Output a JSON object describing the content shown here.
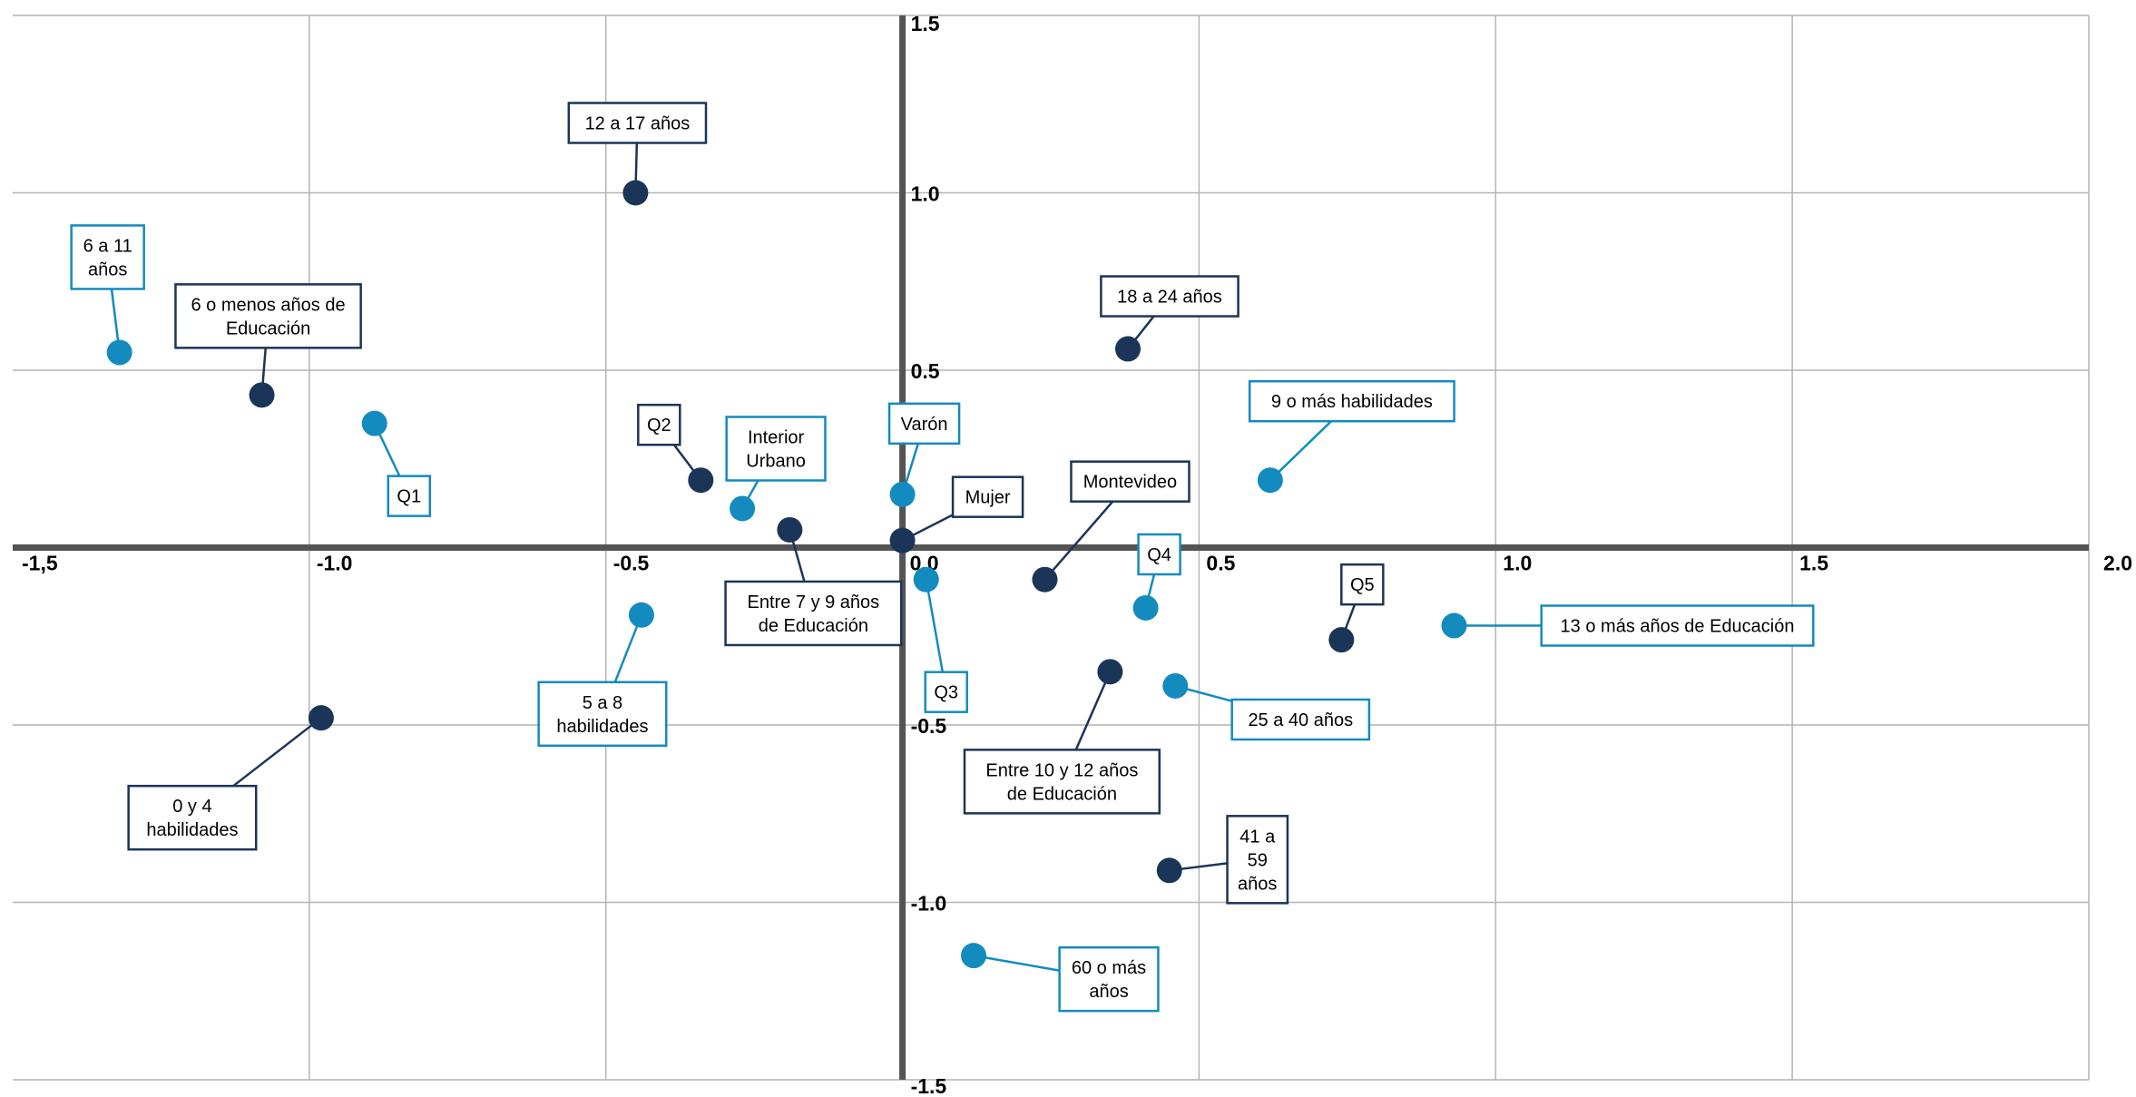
{
  "chart_data": {
    "type": "scatter",
    "title": "",
    "xlabel": "",
    "ylabel": "",
    "xlim": [
      -1.5,
      2.0
    ],
    "ylim": [
      -1.5,
      1.5
    ],
    "grid": true,
    "x_tick_labels": [
      "-1,5",
      "-1.0",
      "-0.5",
      "0.0",
      "0.5",
      "1.0",
      "1.5",
      "2.0"
    ],
    "y_tick_labels": [
      "1.5",
      "1.0",
      "0.5",
      "-0.5",
      "-1.0",
      "-1.5"
    ],
    "colors": {
      "dark": "#1b3558",
      "light": "#138bbf",
      "axis": "#545454",
      "grid": "#b4b4b4"
    },
    "points": [
      {
        "label": "12 a 17 años",
        "x": -0.45,
        "y": 1.0,
        "group": "dark"
      },
      {
        "label": "6 a 11 años",
        "x": -1.32,
        "y": 0.55,
        "group": "light"
      },
      {
        "label": "6 o menos años de Educación",
        "x": -1.08,
        "y": 0.43,
        "group": "dark"
      },
      {
        "label": "Q1",
        "x": -0.89,
        "y": 0.35,
        "group": "light"
      },
      {
        "label": "18 a 24 años",
        "x": 0.38,
        "y": 0.56,
        "group": "dark"
      },
      {
        "label": "9 o más habilidades",
        "x": 0.62,
        "y": 0.19,
        "group": "light"
      },
      {
        "label": "Q2",
        "x": -0.34,
        "y": 0.19,
        "group": "dark"
      },
      {
        "label": "Interior Urbano",
        "x": -0.27,
        "y": 0.11,
        "group": "light"
      },
      {
        "label": "Varón",
        "x": 0.0,
        "y": 0.15,
        "group": "light"
      },
      {
        "label": "Mujer",
        "x": 0.0,
        "y": 0.02,
        "group": "dark"
      },
      {
        "label": "Montevideo",
        "x": 0.24,
        "y": -0.09,
        "group": "dark"
      },
      {
        "label": "Entre 7 y 9 años de Educación",
        "x": -0.19,
        "y": 0.05,
        "group": "dark"
      },
      {
        "label": "Q4",
        "x": 0.41,
        "y": -0.17,
        "group": "light"
      },
      {
        "label": "Q3",
        "x": 0.04,
        "y": -0.09,
        "group": "light"
      },
      {
        "label": "Q5",
        "x": 0.74,
        "y": -0.26,
        "group": "dark"
      },
      {
        "label": "13 o más años de Educación",
        "x": 0.93,
        "y": -0.22,
        "group": "light"
      },
      {
        "label": "5 a 8 habilidades",
        "x": -0.44,
        "y": -0.19,
        "group": "light"
      },
      {
        "label": "Entre 10 y 12 años de Educación",
        "x": 0.35,
        "y": -0.35,
        "group": "dark"
      },
      {
        "label": "25 a 40 años",
        "x": 0.46,
        "y": -0.39,
        "group": "light"
      },
      {
        "label": "0 y 4 habilidades",
        "x": -0.98,
        "y": -0.48,
        "group": "dark"
      },
      {
        "label": "41 a 59 años",
        "x": 0.45,
        "y": -0.91,
        "group": "dark"
      },
      {
        "label": "60 o más años",
        "x": 0.12,
        "y": -1.15,
        "group": "light"
      }
    ]
  }
}
